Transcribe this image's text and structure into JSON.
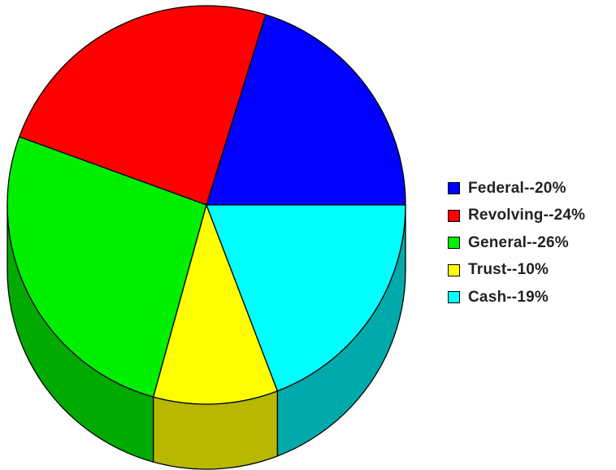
{
  "chart_data": {
    "type": "pie",
    "three_d": true,
    "legend_position": "right",
    "slices": [
      {
        "label": "Federal--20%",
        "value": 20,
        "color": "#0000ff",
        "side_color": "#0000b8"
      },
      {
        "label": "Revolving--24%",
        "value": 24,
        "color": "#ff0000",
        "side_color": "#b80000"
      },
      {
        "label": "General--26%",
        "value": 26,
        "color": "#00ee00",
        "side_color": "#00aa00"
      },
      {
        "label": "Trust--10%",
        "value": 10,
        "color": "#ffff00",
        "side_color": "#b8b800"
      },
      {
        "label": "Cash--19%",
        "value": 19,
        "color": "#00ffff",
        "side_color": "#00aaaa"
      }
    ]
  }
}
